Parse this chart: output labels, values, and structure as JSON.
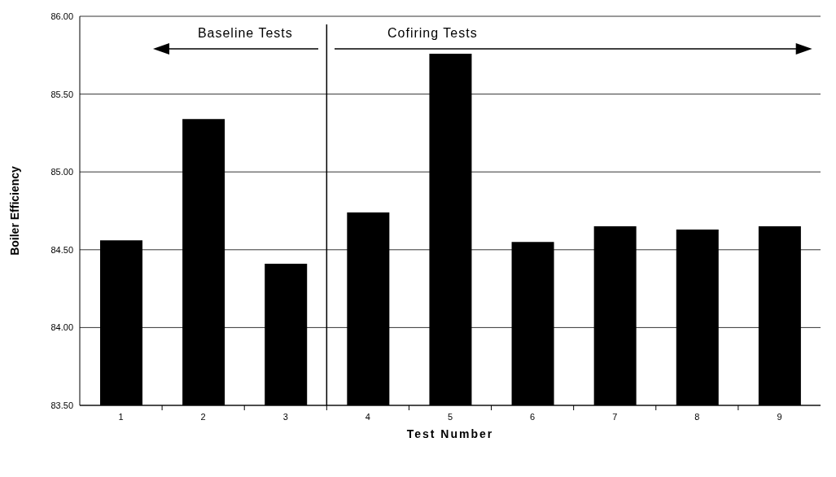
{
  "chart_data": {
    "type": "bar",
    "xlabel": "Test Number",
    "ylabel": "Boiler Efficiency",
    "x": [
      1,
      2,
      3,
      4,
      5,
      6,
      7,
      8,
      9
    ],
    "xlim": [
      0.5,
      9.5
    ],
    "xticks": [
      1,
      {
        "value": 1.5,
        "label": null
      },
      2,
      {
        "value": 2.5,
        "label": null
      },
      3,
      {
        "value": 3.5,
        "label": null
      },
      4,
      {
        "value": 4.5,
        "label": null
      },
      5,
      {
        "value": 5.5,
        "label": null
      },
      6,
      {
        "value": 6.5,
        "label": null
      },
      7,
      {
        "value": 7.5,
        "label": null
      },
      8,
      {
        "value": 8.5,
        "label": null
      },
      9
    ],
    "values": [
      84.56,
      85.34,
      84.41,
      84.74,
      85.76,
      84.55,
      84.65,
      84.63,
      84.65
    ],
    "color": "#000000",
    "ylim": [
      83.5,
      86
    ],
    "yticks": [
      {
        "value": 83.5,
        "label": "83.50"
      },
      {
        "value": 84,
        "label": "84.00"
      },
      {
        "value": 84.5,
        "label": "84.50"
      },
      {
        "value": 85,
        "label": "85.00"
      },
      {
        "value": 85.5,
        "label": "85.50"
      },
      {
        "value": 86,
        "label": "86.00"
      }
    ],
    "grid": "y",
    "ref_lines": [
      {
        "axis": "x",
        "value": 3.5,
        "color": "#000000"
      }
    ],
    "annotations": [
      "Baseline Tests",
      "Cofiring Tests"
    ]
  }
}
